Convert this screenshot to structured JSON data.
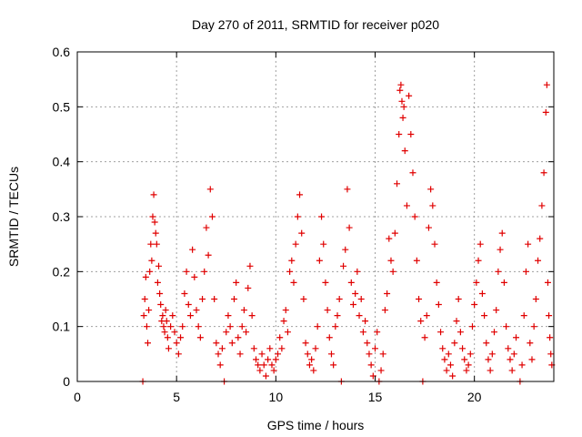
{
  "chart_data": {
    "type": "scatter",
    "title": "Day 270 of 2011, SRMTID for receiver p020",
    "xlabel": "GPS time / hours",
    "ylabel": "SRMTID / TECUs",
    "xlim": [
      0,
      24
    ],
    "ylim": [
      0,
      0.6
    ],
    "xticks": [
      0,
      5,
      10,
      15,
      20
    ],
    "xtick_labels": [
      "0",
      "5",
      "10",
      "15",
      "20"
    ],
    "yticks": [
      0,
      0.1,
      0.2,
      0.3,
      0.4,
      0.5,
      0.6
    ],
    "ytick_labels": [
      "0",
      "0.1",
      "0.2",
      "0.3",
      "0.4",
      "0.5",
      "0.6"
    ],
    "grid": true,
    "marker": "plus",
    "series_color": "#e00000",
    "series": [
      {
        "name": "SRMTID",
        "points": [
          [
            3.3,
            0.0
          ],
          [
            3.35,
            0.12
          ],
          [
            3.4,
            0.15
          ],
          [
            3.45,
            0.19
          ],
          [
            3.5,
            0.1
          ],
          [
            3.55,
            0.07
          ],
          [
            3.6,
            0.13
          ],
          [
            3.65,
            0.2
          ],
          [
            3.7,
            0.25
          ],
          [
            3.75,
            0.22
          ],
          [
            3.8,
            0.3
          ],
          [
            3.85,
            0.34
          ],
          [
            3.9,
            0.29
          ],
          [
            3.95,
            0.27
          ],
          [
            4.0,
            0.25
          ],
          [
            4.05,
            0.18
          ],
          [
            4.1,
            0.21
          ],
          [
            4.15,
            0.16
          ],
          [
            4.2,
            0.14
          ],
          [
            4.25,
            0.11
          ],
          [
            4.3,
            0.12
          ],
          [
            4.35,
            0.1
          ],
          [
            4.4,
            0.09
          ],
          [
            4.45,
            0.13
          ],
          [
            4.5,
            0.11
          ],
          [
            4.55,
            0.08
          ],
          [
            4.6,
            0.06
          ],
          [
            4.7,
            0.1
          ],
          [
            4.8,
            0.12
          ],
          [
            4.9,
            0.09
          ],
          [
            5.0,
            0.07
          ],
          [
            5.1,
            0.05
          ],
          [
            5.2,
            0.08
          ],
          [
            5.3,
            0.1
          ],
          [
            5.4,
            0.16
          ],
          [
            5.5,
            0.2
          ],
          [
            5.6,
            0.14
          ],
          [
            5.7,
            0.12
          ],
          [
            5.8,
            0.24
          ],
          [
            5.9,
            0.19
          ],
          [
            6.0,
            0.13
          ],
          [
            6.1,
            0.1
          ],
          [
            6.2,
            0.08
          ],
          [
            6.3,
            0.15
          ],
          [
            6.4,
            0.2
          ],
          [
            6.5,
            0.28
          ],
          [
            6.6,
            0.23
          ],
          [
            6.7,
            0.35
          ],
          [
            6.8,
            0.3
          ],
          [
            6.9,
            0.15
          ],
          [
            7.0,
            0.07
          ],
          [
            7.1,
            0.05
          ],
          [
            7.2,
            0.03
          ],
          [
            7.3,
            0.06
          ],
          [
            7.4,
            0.0
          ],
          [
            7.5,
            0.09
          ],
          [
            7.6,
            0.12
          ],
          [
            7.7,
            0.1
          ],
          [
            7.8,
            0.07
          ],
          [
            7.9,
            0.15
          ],
          [
            8.0,
            0.18
          ],
          [
            8.1,
            0.08
          ],
          [
            8.2,
            0.05
          ],
          [
            8.3,
            0.1
          ],
          [
            8.4,
            0.13
          ],
          [
            8.5,
            0.09
          ],
          [
            8.6,
            0.17
          ],
          [
            8.7,
            0.21
          ],
          [
            8.8,
            0.12
          ],
          [
            8.9,
            0.06
          ],
          [
            9.0,
            0.04
          ],
          [
            9.1,
            0.03
          ],
          [
            9.2,
            0.02
          ],
          [
            9.3,
            0.05
          ],
          [
            9.4,
            0.03
          ],
          [
            9.5,
            0.01
          ],
          [
            9.6,
            0.04
          ],
          [
            9.7,
            0.06
          ],
          [
            9.8,
            0.03
          ],
          [
            9.9,
            0.02
          ],
          [
            10.0,
            0.04
          ],
          [
            10.1,
            0.05
          ],
          [
            10.2,
            0.08
          ],
          [
            10.3,
            0.06
          ],
          [
            10.4,
            0.11
          ],
          [
            10.5,
            0.13
          ],
          [
            10.6,
            0.09
          ],
          [
            10.7,
            0.2
          ],
          [
            10.8,
            0.22
          ],
          [
            10.9,
            0.18
          ],
          [
            11.0,
            0.25
          ],
          [
            11.1,
            0.3
          ],
          [
            11.2,
            0.34
          ],
          [
            11.3,
            0.27
          ],
          [
            11.4,
            0.15
          ],
          [
            11.5,
            0.07
          ],
          [
            11.6,
            0.05
          ],
          [
            11.7,
            0.03
          ],
          [
            11.8,
            0.04
          ],
          [
            11.9,
            0.02
          ],
          [
            12.0,
            0.06
          ],
          [
            12.1,
            0.1
          ],
          [
            12.2,
            0.22
          ],
          [
            12.3,
            0.3
          ],
          [
            12.4,
            0.25
          ],
          [
            12.5,
            0.18
          ],
          [
            12.6,
            0.13
          ],
          [
            12.7,
            0.08
          ],
          [
            12.8,
            0.05
          ],
          [
            12.9,
            0.03
          ],
          [
            13.0,
            0.1
          ],
          [
            13.1,
            0.12
          ],
          [
            13.2,
            0.15
          ],
          [
            13.3,
            0.0
          ],
          [
            13.4,
            0.21
          ],
          [
            13.5,
            0.24
          ],
          [
            13.6,
            0.35
          ],
          [
            13.7,
            0.28
          ],
          [
            13.8,
            0.18
          ],
          [
            13.9,
            0.14
          ],
          [
            14.0,
            0.16
          ],
          [
            14.1,
            0.2
          ],
          [
            14.2,
            0.12
          ],
          [
            14.3,
            0.15
          ],
          [
            14.4,
            0.09
          ],
          [
            14.5,
            0.11
          ],
          [
            14.6,
            0.07
          ],
          [
            14.7,
            0.05
          ],
          [
            14.8,
            0.03
          ],
          [
            14.9,
            0.01
          ],
          [
            15.0,
            0.06
          ],
          [
            15.1,
            0.09
          ],
          [
            15.2,
            0.0
          ],
          [
            15.3,
            0.02
          ],
          [
            15.4,
            0.05
          ],
          [
            15.5,
            0.13
          ],
          [
            15.6,
            0.16
          ],
          [
            15.7,
            0.26
          ],
          [
            15.8,
            0.22
          ],
          [
            15.9,
            0.2
          ],
          [
            16.0,
            0.27
          ],
          [
            16.1,
            0.36
          ],
          [
            16.2,
            0.45
          ],
          [
            16.25,
            0.53
          ],
          [
            16.3,
            0.54
          ],
          [
            16.35,
            0.51
          ],
          [
            16.4,
            0.48
          ],
          [
            16.45,
            0.5
          ],
          [
            16.5,
            0.42
          ],
          [
            16.6,
            0.32
          ],
          [
            16.7,
            0.52
          ],
          [
            16.8,
            0.45
          ],
          [
            16.9,
            0.38
          ],
          [
            17.0,
            0.3
          ],
          [
            17.1,
            0.22
          ],
          [
            17.2,
            0.15
          ],
          [
            17.3,
            0.11
          ],
          [
            17.4,
            0.0
          ],
          [
            17.5,
            0.08
          ],
          [
            17.6,
            0.12
          ],
          [
            17.7,
            0.28
          ],
          [
            17.8,
            0.35
          ],
          [
            17.9,
            0.32
          ],
          [
            18.0,
            0.25
          ],
          [
            18.1,
            0.18
          ],
          [
            18.2,
            0.14
          ],
          [
            18.3,
            0.09
          ],
          [
            18.4,
            0.06
          ],
          [
            18.5,
            0.04
          ],
          [
            18.6,
            0.02
          ],
          [
            18.7,
            0.05
          ],
          [
            18.8,
            0.03
          ],
          [
            18.9,
            0.01
          ],
          [
            19.0,
            0.07
          ],
          [
            19.1,
            0.11
          ],
          [
            19.2,
            0.15
          ],
          [
            19.3,
            0.09
          ],
          [
            19.4,
            0.06
          ],
          [
            19.5,
            0.04
          ],
          [
            19.6,
            0.02
          ],
          [
            19.7,
            0.03
          ],
          [
            19.8,
            0.05
          ],
          [
            19.9,
            0.1
          ],
          [
            20.0,
            0.14
          ],
          [
            20.1,
            0.18
          ],
          [
            20.2,
            0.22
          ],
          [
            20.3,
            0.25
          ],
          [
            20.4,
            0.16
          ],
          [
            20.5,
            0.12
          ],
          [
            20.6,
            0.07
          ],
          [
            20.7,
            0.04
          ],
          [
            20.8,
            0.02
          ],
          [
            20.9,
            0.05
          ],
          [
            21.0,
            0.09
          ],
          [
            21.1,
            0.13
          ],
          [
            21.2,
            0.2
          ],
          [
            21.3,
            0.24
          ],
          [
            21.4,
            0.27
          ],
          [
            21.5,
            0.18
          ],
          [
            21.6,
            0.1
          ],
          [
            21.7,
            0.06
          ],
          [
            21.8,
            0.04
          ],
          [
            21.9,
            0.02
          ],
          [
            22.0,
            0.05
          ],
          [
            22.1,
            0.08
          ],
          [
            22.3,
            0.0
          ],
          [
            22.4,
            0.03
          ],
          [
            22.5,
            0.12
          ],
          [
            22.6,
            0.2
          ],
          [
            22.7,
            0.25
          ],
          [
            22.8,
            0.07
          ],
          [
            22.9,
            0.04
          ],
          [
            23.0,
            0.1
          ],
          [
            23.1,
            0.15
          ],
          [
            23.2,
            0.22
          ],
          [
            23.3,
            0.26
          ],
          [
            23.4,
            0.32
          ],
          [
            23.5,
            0.38
          ],
          [
            23.6,
            0.49
          ],
          [
            23.65,
            0.54
          ],
          [
            23.7,
            0.18
          ],
          [
            23.75,
            0.12
          ],
          [
            23.8,
            0.08
          ],
          [
            23.85,
            0.05
          ],
          [
            23.9,
            0.03
          ]
        ]
      }
    ]
  }
}
